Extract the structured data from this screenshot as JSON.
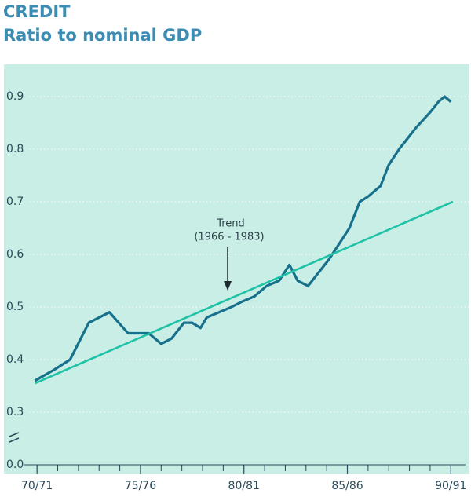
{
  "chart_data": {
    "type": "line",
    "title": "CREDIT",
    "subtitle": "Ratio to nominal GDP",
    "annotations": [
      "Trend",
      "(1966 - 1983)"
    ],
    "x": [
      1969.9,
      1970.8,
      1971.6,
      1972.5,
      1973.5,
      1974.4,
      1975.4,
      1976.0,
      1976.5,
      1977.1,
      1977.5,
      1977.9,
      1978.2,
      1978.8,
      1979.4,
      1979.9,
      1980.5,
      1981.1,
      1981.7,
      1982.2,
      1982.6,
      1983.1,
      1983.5,
      1984.1,
      1984.6,
      1985.1,
      1985.6,
      1986.0,
      1986.6,
      1987.0,
      1987.5,
      1988.3,
      1989.0,
      1989.4,
      1989.7,
      1990.0
    ],
    "series": [
      {
        "color": "#17708c",
        "values": [
          0.36,
          0.38,
          0.4,
          0.47,
          0.49,
          0.45,
          0.45,
          0.43,
          0.44,
          0.47,
          0.47,
          0.46,
          0.48,
          0.49,
          0.5,
          0.51,
          0.52,
          0.54,
          0.55,
          0.58,
          0.55,
          0.54,
          0.56,
          0.59,
          0.62,
          0.65,
          0.7,
          0.71,
          0.73,
          0.77,
          0.8,
          0.84,
          0.87,
          0.89,
          0.9,
          0.89
        ]
      },
      {
        "color": "#1fc2a6",
        "x": [
          1969.9,
          1990.1
        ],
        "values": [
          0.355,
          0.7
        ]
      }
    ],
    "xlim": [
      1968.4,
      1990.9
    ],
    "xticks": [
      {
        "value": 1970,
        "label": "70/71"
      },
      {
        "value": 1975,
        "label": "75/76"
      },
      {
        "value": 1980,
        "label": "80/81"
      },
      {
        "value": 1985,
        "label": "85/86"
      },
      {
        "value": 1990,
        "label": "90/91"
      }
    ],
    "xminorticks": [
      1971,
      1972,
      1973,
      1974,
      1976,
      1977,
      1978,
      1979,
      1981,
      1982,
      1983,
      1984,
      1986,
      1987,
      1988,
      1989
    ],
    "ylim": [
      0.2,
      0.95
    ],
    "yticks": [
      {
        "value": 0,
        "label": "0.0"
      },
      0.3,
      0.4,
      0.5,
      0.6,
      0.7,
      0.8,
      0.9
    ],
    "axis_break": true,
    "grid": true,
    "background": "#c9eee6"
  }
}
